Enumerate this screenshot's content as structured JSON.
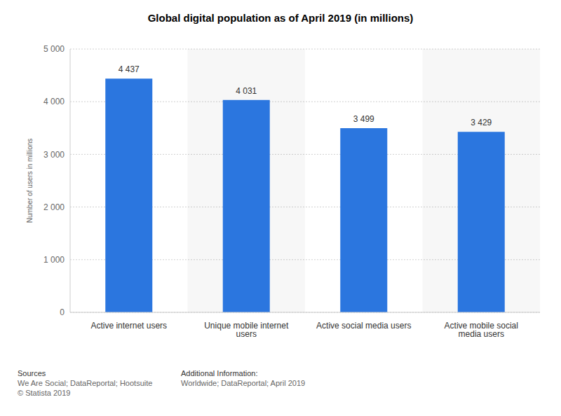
{
  "chart_data": {
    "type": "bar",
    "title": "Global digital population as of April 2019 (in millions)",
    "y_label": "Number of users in millions",
    "categories": [
      "Active internet users",
      "Unique mobile internet users",
      "Active social media users",
      "Active mobile social media users"
    ],
    "values": [
      4437,
      4031,
      3499,
      3429
    ],
    "value_labels": [
      "4 437",
      "4 031",
      "3 499",
      "3 429"
    ],
    "color": "#2b76df",
    "ylim": [
      0,
      5000
    ],
    "yticks": [
      0,
      {
        "value": 1000,
        "label": "1 000"
      },
      {
        "value": 2000,
        "label": "2 000"
      },
      {
        "value": 3000,
        "label": "3 000"
      },
      {
        "value": 4000,
        "label": "4 000"
      },
      {
        "value": 5000,
        "label": "5 000"
      }
    ],
    "grid": true,
    "data_labels": true
  },
  "footer": {
    "sources_title": "Sources",
    "sources": "We Are Social; DataReportal; Hootsuite",
    "copyright": "© Statista 2019",
    "info_title": "Additional Information:",
    "info": "Worldwide; DataReportal; April 2019"
  }
}
